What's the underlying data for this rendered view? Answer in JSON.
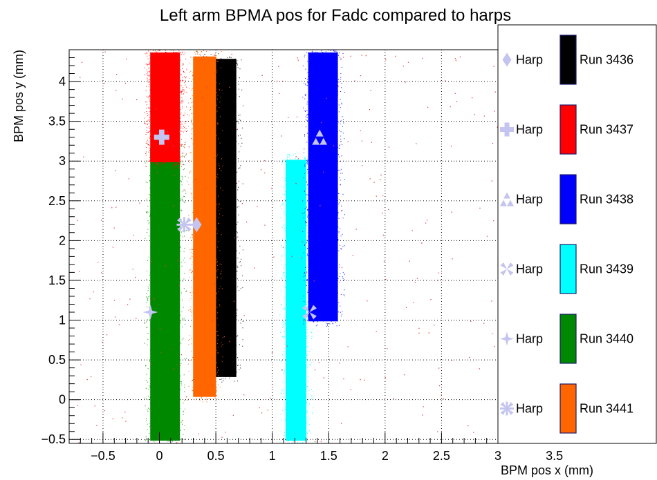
{
  "chart_data": {
    "type": "scatter",
    "title": "Left arm BPMA pos for Fadc compared to harps",
    "xlabel": "BPM pos x (mm)",
    "ylabel": "BPM pos y (mm)",
    "xlim": [
      -0.8,
      3.0
    ],
    "ylim": [
      -0.55,
      4.4
    ],
    "x_ticks": [
      -0.5,
      0,
      0.5,
      1,
      1.5,
      2,
      2.5,
      3,
      3.5
    ],
    "x_tick_labels": [
      "−0.5",
      "0",
      "0.5",
      "1",
      "1.5",
      "2",
      "2.5",
      "3",
      "3.5"
    ],
    "y_ticks": [
      -0.5,
      0,
      0.5,
      1,
      1.5,
      2,
      2.5,
      3,
      3.5,
      4
    ],
    "y_tick_labels": [
      "−0.5",
      "0",
      "0.5",
      "1",
      "1.5",
      "2",
      "2.5",
      "3",
      "3.5",
      "4"
    ],
    "grid": true,
    "legend_position": "right",
    "series": [
      {
        "name": "Run 3436",
        "color": "#000000",
        "x_range": [
          0.32,
          0.7
        ],
        "y_range": [
          0.25,
          4.32
        ]
      },
      {
        "name": "Run 3437",
        "color": "#ff0000",
        "x_range": [
          -0.1,
          0.2
        ],
        "y_range": [
          2.95,
          4.4
        ]
      },
      {
        "name": "Run 3438",
        "color": "#0000ff",
        "x_range": [
          1.3,
          1.6
        ],
        "y_range": [
          0.95,
          4.4
        ]
      },
      {
        "name": "Run 3439",
        "color": "#00ffff",
        "x_range": [
          1.1,
          1.32
        ],
        "y_range": [
          -0.55,
          3.05
        ]
      },
      {
        "name": "Run 3440",
        "color": "#008800",
        "x_range": [
          -0.1,
          0.2
        ],
        "y_range": [
          -0.55,
          3.2
        ]
      },
      {
        "name": "Run 3441",
        "color": "#ff6600",
        "x_range": [
          0.28,
          0.52
        ],
        "y_range": [
          0.0,
          4.35
        ]
      }
    ],
    "harps": [
      {
        "label": "Harp",
        "run": "Run 3436",
        "marker": "diamond",
        "x": 0.33,
        "y": 2.2
      },
      {
        "label": "Harp",
        "run": "Run 3437",
        "marker": "cross",
        "x": 0.02,
        "y": 3.3
      },
      {
        "label": "Harp",
        "run": "Run 3438",
        "marker": "triangles",
        "x": 1.42,
        "y": 3.3
      },
      {
        "label": "Harp",
        "run": "Run 3439",
        "marker": "x-triangles",
        "x": 1.33,
        "y": 1.1
      },
      {
        "label": "Harp",
        "run": "Run 3440",
        "marker": "star",
        "x": -0.08,
        "y": 1.1
      },
      {
        "label": "Harp",
        "run": "Run 3441",
        "marker": "star-cross",
        "x": 0.22,
        "y": 2.2
      }
    ],
    "harp_color": "#c4c4f0"
  }
}
